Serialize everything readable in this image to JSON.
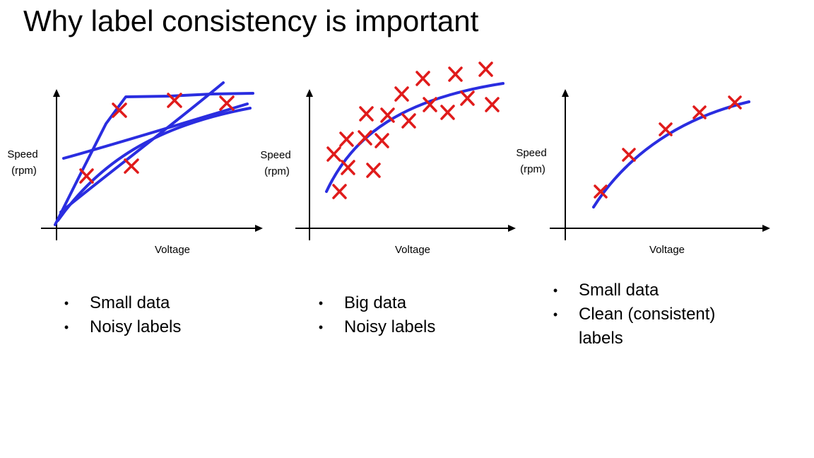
{
  "slide": {
    "title": "Why label consistency is important"
  },
  "colors": {
    "curve": "#2a2de0",
    "marker": "#e01b1b",
    "axis": "#000000"
  },
  "plots": [
    {
      "ylabel_line1": "Speed",
      "ylabel_line2": "(rpm)",
      "xlabel": "Voltage",
      "bullets": [
        "Small data",
        "Noisy labels"
      ]
    },
    {
      "ylabel_line1": "Speed",
      "ylabel_line2": "(rpm)",
      "xlabel": "Voltage",
      "bullets": [
        "Big data",
        "Noisy labels"
      ]
    },
    {
      "ylabel_line1": "Speed",
      "ylabel_line2": "(rpm)",
      "xlabel": "Voltage",
      "bullets": [
        "Small data",
        "Clean (consistent)",
        "labels"
      ]
    }
  ]
}
